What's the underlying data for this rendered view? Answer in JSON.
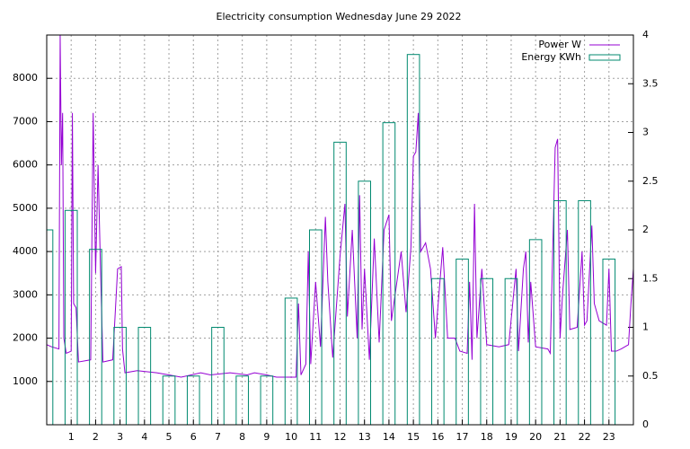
{
  "chart_data": {
    "type": "line",
    "title": "Electricity consumption Wednesday June 29 2022",
    "xlim": [
      0,
      24
    ],
    "xticks": [
      1,
      2,
      3,
      4,
      5,
      6,
      7,
      8,
      9,
      10,
      11,
      12,
      13,
      14,
      15,
      16,
      17,
      18,
      19,
      20,
      21,
      22,
      23
    ],
    "ylim": [
      0,
      9000
    ],
    "yticks": [
      1000,
      2000,
      3000,
      4000,
      5000,
      6000,
      7000,
      8000
    ],
    "y2lim": [
      0,
      4
    ],
    "y2ticks": [
      0,
      0.5,
      1,
      1.5,
      2,
      2.5,
      3,
      3.5,
      4
    ],
    "grid": true,
    "legend": "top-right",
    "series": [
      {
        "name": "Power W",
        "color": "#9400d3",
        "type": "line",
        "x": [
          0,
          0.2,
          0.5,
          0.55,
          0.6,
          0.65,
          0.7,
          0.8,
          1.0,
          1.05,
          1.1,
          1.2,
          1.3,
          1.8,
          1.9,
          2.0,
          2.1,
          2.2,
          2.3,
          2.7,
          2.9,
          3.05,
          3.1,
          3.2,
          3.7,
          4.5,
          5,
          5.5,
          6.3,
          6.7,
          7.5,
          8.2,
          8.5,
          9,
          9.4,
          10.2,
          10.3,
          10.4,
          10.6,
          10.7,
          10.8,
          11,
          11.2,
          11.4,
          11.5,
          11.7,
          12,
          12.2,
          12.3,
          12.5,
          12.7,
          12.8,
          12.9,
          13,
          13.2,
          13.4,
          13.6,
          13.8,
          14,
          14.1,
          14.3,
          14.5,
          14.7,
          14.9,
          15,
          15.1,
          15.2,
          15.3,
          15.5,
          15.7,
          15.9,
          16.2,
          16.4,
          16.7,
          16.9,
          17.2,
          17.3,
          17.4,
          17.5,
          17.6,
          17.8,
          18,
          18.5,
          18.9,
          19.2,
          19.3,
          19.5,
          19.6,
          19.7,
          19.8,
          20,
          20.5,
          20.6,
          20.8,
          20.9,
          21,
          21.1,
          21.3,
          21.4,
          21.7,
          21.9,
          22,
          22.1,
          22.3,
          22.4,
          22.6,
          22.9,
          23,
          23.1,
          23.3,
          23.5,
          23.8,
          23.9,
          24
        ],
        "values": [
          1850,
          1800,
          1750,
          9000,
          6000,
          7200,
          2000,
          1650,
          1700,
          7200,
          2800,
          2700,
          1450,
          1500,
          7200,
          3500,
          6000,
          3600,
          1450,
          1500,
          3600,
          3650,
          1750,
          1200,
          1250,
          1200,
          1150,
          1100,
          1200,
          1150,
          1200,
          1150,
          1200,
          1150,
          1100,
          1100,
          2800,
          1150,
          1400,
          4000,
          1400,
          3300,
          1800,
          4800,
          3300,
          1550,
          3900,
          5100,
          2500,
          4500,
          2000,
          5300,
          2200,
          3600,
          1500,
          4300,
          1900,
          4500,
          4850,
          2400,
          3200,
          4000,
          2600,
          4100,
          6200,
          6300,
          7200,
          4000,
          4200,
          3600,
          2000,
          4100,
          2000,
          2000,
          1700,
          1650,
          3300,
          1500,
          5100,
          2000,
          3600,
          1850,
          1800,
          1850,
          3600,
          1700,
          3600,
          4000,
          1900,
          3300,
          1800,
          1750,
          1650,
          6400,
          6600,
          2000,
          3000,
          4500,
          2200,
          2250,
          4000,
          2300,
          2400,
          4600,
          2800,
          2400,
          2300,
          3600,
          1700,
          1700,
          1750,
          1850,
          2800,
          3600
        ]
      },
      {
        "name": "Energy KWh",
        "color": "#00896f",
        "type": "boxes",
        "axis": "y2",
        "x": [
          0,
          1,
          2,
          3,
          4,
          5,
          6,
          7,
          8,
          9,
          10,
          11,
          12,
          13,
          14,
          15,
          16,
          17,
          18,
          19,
          20,
          21,
          22,
          23
        ],
        "values": [
          2.0,
          2.2,
          1.8,
          1.0,
          1.0,
          0.5,
          0.5,
          1.0,
          0.5,
          0.5,
          1.3,
          2.0,
          2.9,
          2.5,
          3.1,
          3.8,
          1.5,
          1.7,
          1.5,
          1.5,
          1.9,
          2.3,
          2.3,
          1.7
        ]
      }
    ]
  }
}
